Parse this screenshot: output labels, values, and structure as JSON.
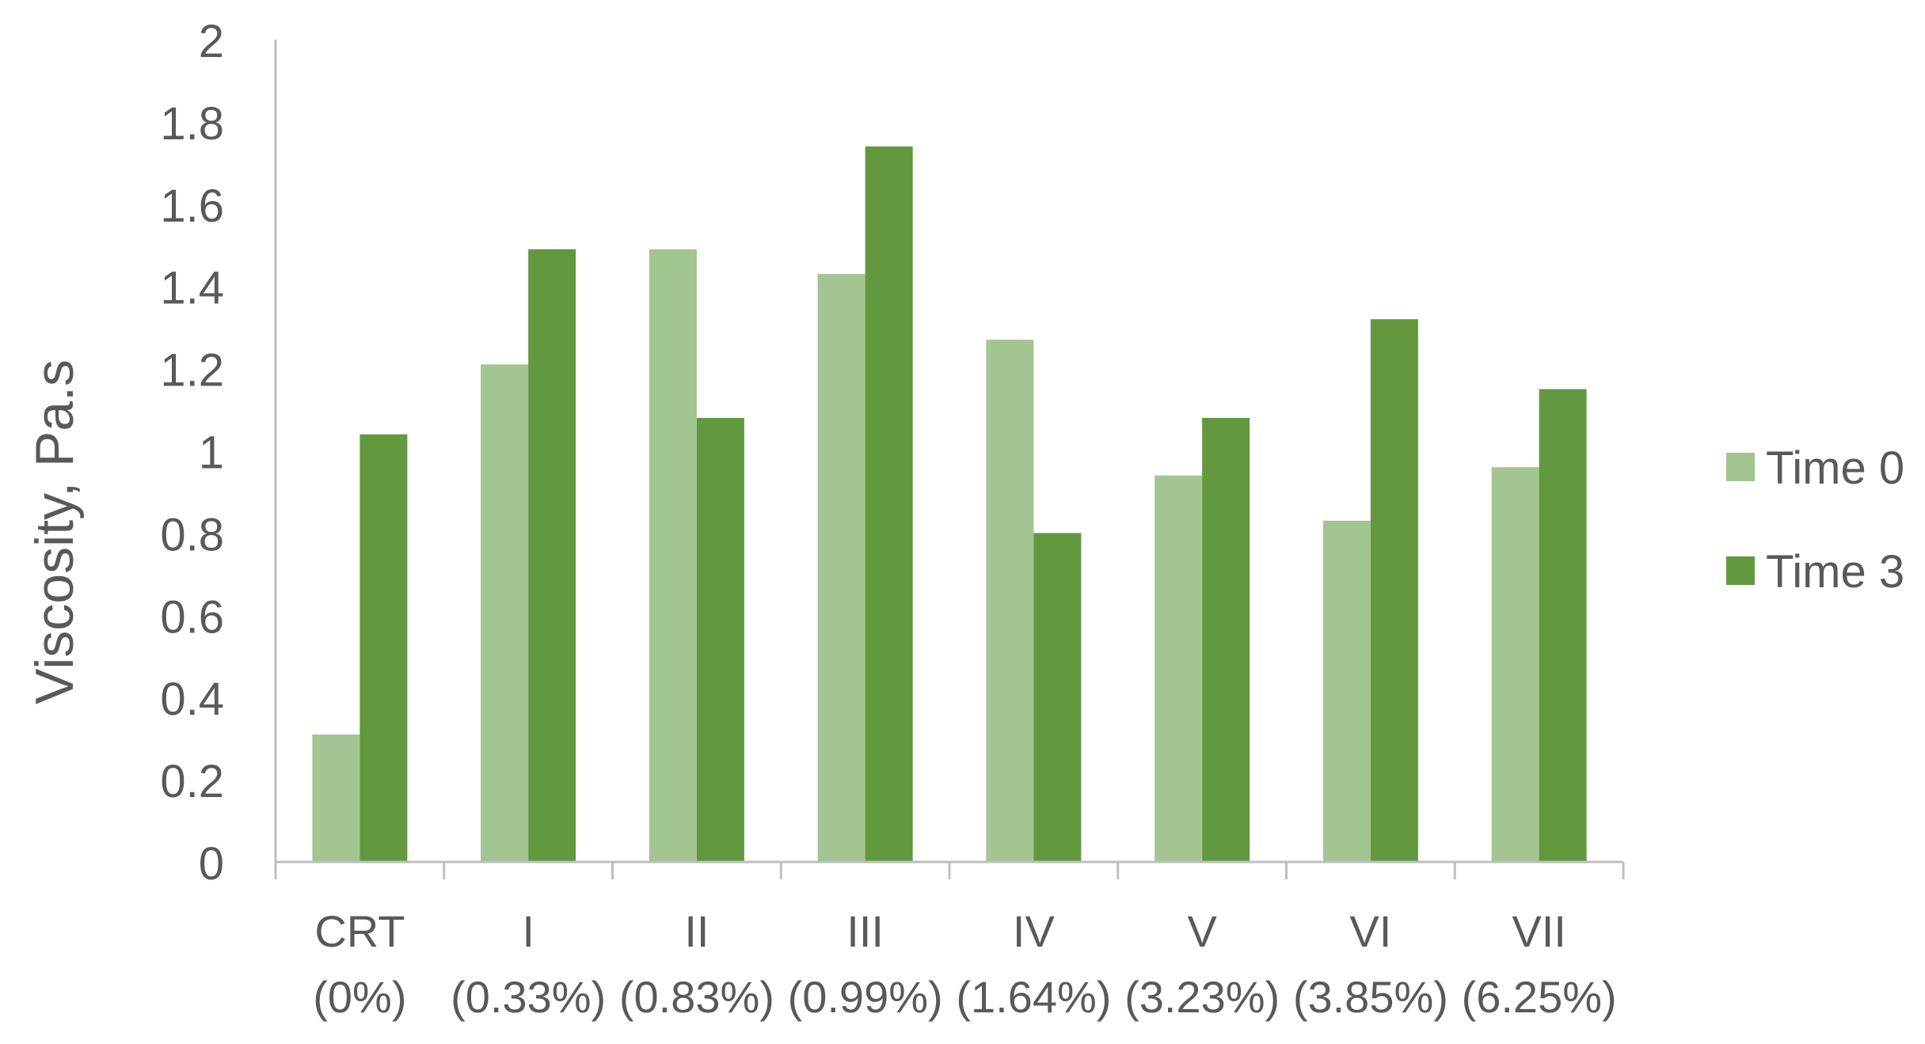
{
  "chart_data": {
    "type": "bar",
    "title": "",
    "xlabel": "",
    "ylabel": "Viscosity, Pa.s",
    "ylim": [
      0,
      2
    ],
    "yticks": [
      "0",
      "0.2",
      "0.4",
      "0.6",
      "0.8",
      "1",
      "1.2",
      "1.4",
      "1.6",
      "1.8",
      "2"
    ],
    "categories": [
      {
        "name": "CRT",
        "pct": "(0%)"
      },
      {
        "name": "I",
        "pct": "(0.33%)"
      },
      {
        "name": "II",
        "pct": "(0.83%)"
      },
      {
        "name": "III",
        "pct": "(0.99%)"
      },
      {
        "name": "IV",
        "pct": "(1.64%)"
      },
      {
        "name": "V",
        "pct": "(3.23%)"
      },
      {
        "name": "VI",
        "pct": "(3.85%)"
      },
      {
        "name": "VII",
        "pct": "(6.25%)"
      }
    ],
    "series": [
      {
        "name": "Time 0",
        "color": "#a2c592",
        "values": [
          0.31,
          1.21,
          1.49,
          1.43,
          1.27,
          0.94,
          0.83,
          0.96
        ]
      },
      {
        "name": "Time 3",
        "color": "#62993e",
        "values": [
          1.04,
          1.49,
          1.08,
          1.74,
          0.8,
          1.08,
          1.32,
          1.15
        ]
      }
    ],
    "grid": false,
    "legend": "right",
    "axis_color": "#bfbfbf"
  }
}
